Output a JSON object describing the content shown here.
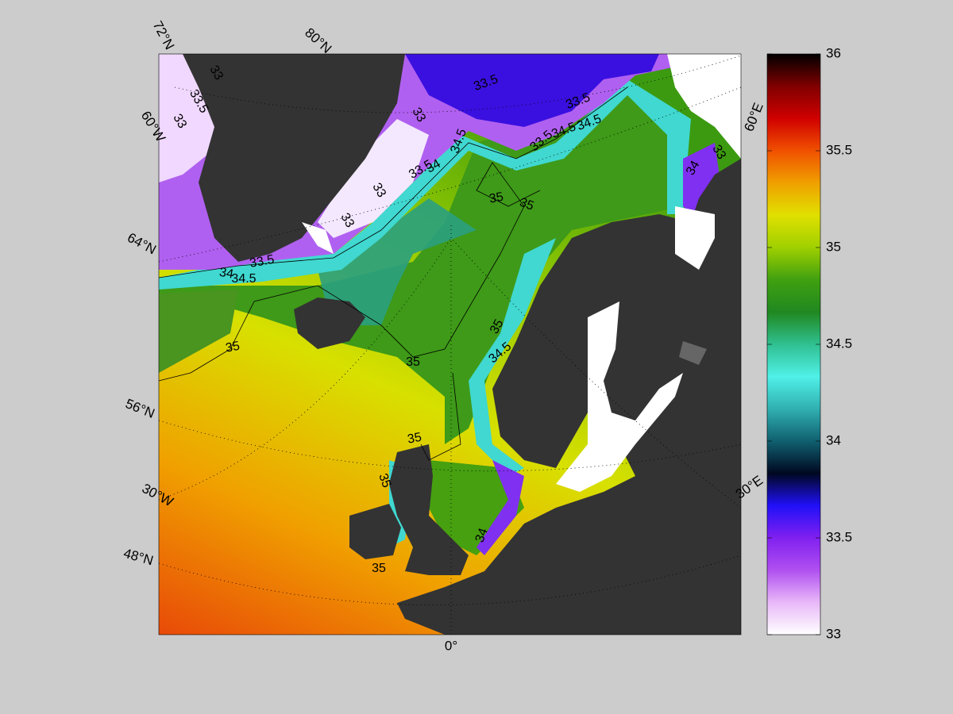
{
  "map": {
    "graticule_labels": [
      "72°N",
      "80°N",
      "60°W",
      "64°N",
      "56°N",
      "30°W",
      "48°N",
      "0°",
      "30°E",
      "60°E"
    ],
    "contour_labels": [
      33,
      33,
      33.5,
      33.5,
      33.5,
      33,
      34.5,
      33.5,
      34,
      33.5,
      34.5,
      34.5,
      33,
      34,
      33,
      33,
      35,
      35,
      33.5,
      34,
      34.5,
      35,
      35,
      35,
      34.5,
      35,
      35,
      34,
      35
    ],
    "colorbar": {
      "lim": [
        33,
        36
      ],
      "ticks": [
        33,
        33.5,
        34,
        34.5,
        35,
        35.5,
        36
      ],
      "colormap": [
        "#ffffff",
        "#e8b8f8",
        "#b050f0",
        "#8020f0",
        "#2010f8",
        "#000820",
        "#106070",
        "#30b0b0",
        "#50f0e8",
        "#30c090",
        "#208820",
        "#40a010",
        "#a0d000",
        "#e0e000",
        "#f0a000",
        "#f05000",
        "#d00000",
        "#800000",
        "#000000"
      ]
    }
  }
}
